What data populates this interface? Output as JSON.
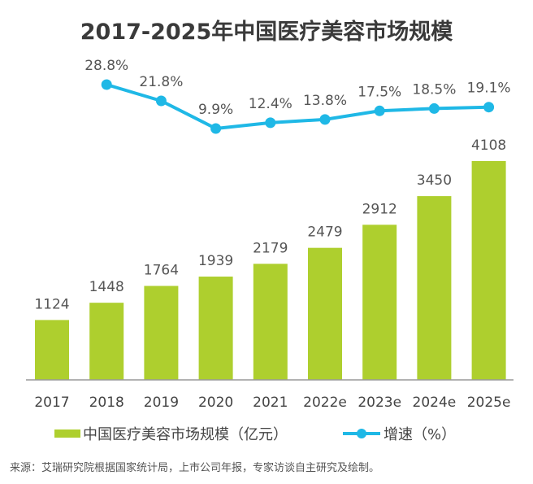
{
  "chart_data": {
    "type": "bar+line",
    "title": "2017-2025年中国医疗美容市场规模",
    "categories": [
      "2017",
      "2018",
      "2019",
      "2020",
      "2021",
      "2022e",
      "2023e",
      "2024e",
      "2025e"
    ],
    "series": [
      {
        "name": "中国医疗美容市场规模（亿元）",
        "type": "bar",
        "color": "#aecf2e",
        "values": [
          1124,
          1448,
          1764,
          1939,
          2179,
          2479,
          2912,
          3450,
          4108
        ],
        "labels": [
          "1124",
          "1448",
          "1764",
          "1939",
          "2179",
          "2479",
          "2912",
          "3450",
          "4108"
        ]
      },
      {
        "name": "增速（%）",
        "type": "line",
        "color": "#1fb8e6",
        "values": [
          null,
          28.8,
          21.8,
          9.9,
          12.4,
          13.8,
          17.5,
          18.5,
          19.1
        ],
        "labels": [
          "",
          "28.8%",
          "21.8%",
          "9.9%",
          "12.4%",
          "13.8%",
          "17.5%",
          "18.5%",
          "19.1%"
        ]
      }
    ],
    "xlabel": "",
    "ylabel": "",
    "ylim": [
      0,
      4108
    ],
    "grid": false,
    "axis_color": "#999999",
    "legend": {
      "position": "bottom",
      "items": [
        {
          "label": "中国医疗美容市场规模（亿元）",
          "marker": "bar"
        },
        {
          "label": "增速（%）",
          "marker": "line-dot"
        }
      ]
    },
    "source": "来源：艾瑞研究院根据国家统计局，上市公司年报，专家访谈自主研究及绘制。"
  }
}
